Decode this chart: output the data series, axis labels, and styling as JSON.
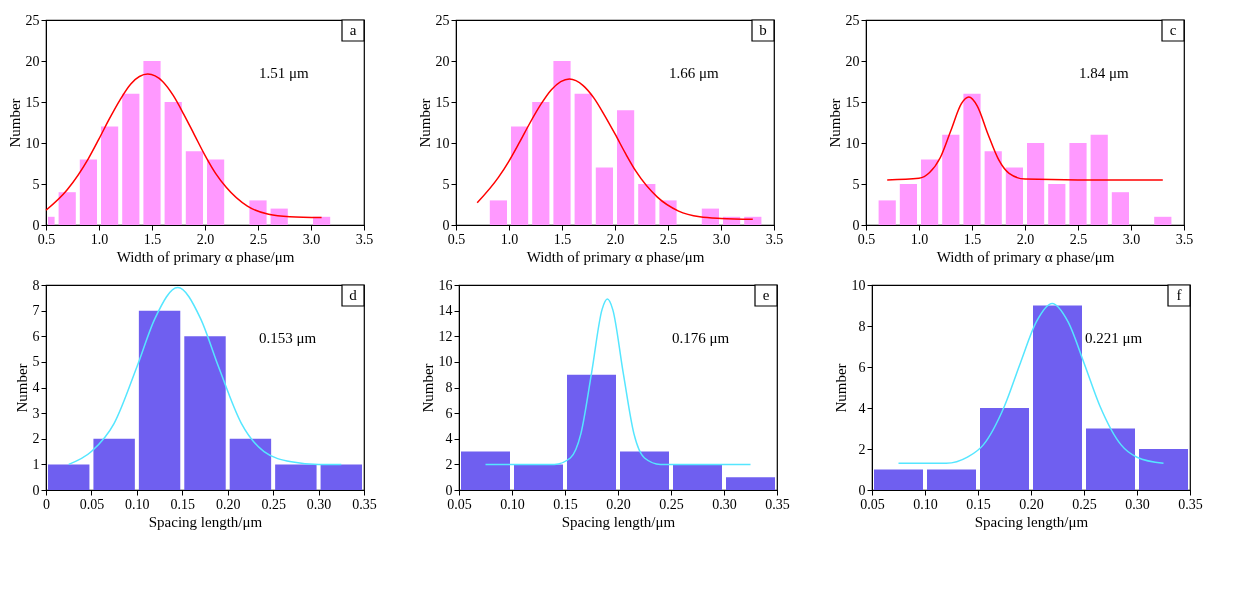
{
  "chart_data": [
    {
      "type": "histogram",
      "xlabel": "Width of primary α phase/μm",
      "ylabel": "Number",
      "color": "#ff99ff",
      "bins": [
        0.5,
        0.6,
        0.8,
        1.0,
        1.2,
        1.4,
        1.6,
        1.8,
        2.0,
        2.2,
        2.4,
        2.6,
        2.8,
        3.0,
        3.2
      ],
      "values": [
        1,
        4,
        8,
        12,
        16,
        20,
        15,
        9,
        8,
        0,
        3,
        2,
        0,
        1
      ],
      "series": [
        {
          "type": "line",
          "color": "#ff0000",
          "x": [
            0.5,
            0.7,
            0.9,
            1.0,
            1.1,
            1.2,
            1.3,
            1.46,
            1.6,
            1.7,
            1.8,
            1.9,
            2.0,
            2.1,
            2.2,
            2.4,
            2.6,
            2.8,
            3.1
          ],
          "values": [
            1.8,
            4.3,
            8.1,
            10.5,
            13.0,
            15.3,
            17.2,
            18.4,
            17.5,
            15.8,
            13.5,
            11.0,
            8.5,
            6.3,
            4.6,
            2.3,
            1.3,
            1.0,
            0.9
          ]
        }
      ],
      "xlim": [
        0.5,
        3.5
      ],
      "xticks": [
        0.5,
        {
          "value": 1,
          "label": "1.0"
        },
        1.5,
        {
          "value": 2,
          "label": "2.0"
        },
        2.5,
        {
          "value": 3,
          "label": "3.0"
        },
        3.5
      ],
      "ylim": [
        0,
        25
      ],
      "yticks": [
        0,
        5,
        10,
        15,
        20,
        25
      ],
      "annotations": [
        "a",
        "1.51 μm"
      ]
    },
    {
      "type": "histogram",
      "xlabel": "Width of primary α phase/μm",
      "ylabel": "Number",
      "color": "#ff99ff",
      "bins": [
        0.8,
        1.0,
        1.2,
        1.4,
        1.6,
        1.8,
        2.0,
        2.2,
        2.4,
        2.6,
        2.8,
        3.0,
        3.2,
        3.4
      ],
      "values": [
        3,
        12,
        15,
        20,
        16,
        7,
        14,
        5,
        3,
        0,
        2,
        1,
        1
      ],
      "series": [
        {
          "type": "line",
          "color": "#ff0000",
          "x": [
            0.7,
            0.9,
            1.0,
            1.1,
            1.2,
            1.3,
            1.4,
            1.57,
            1.7,
            1.8,
            1.9,
            2.0,
            2.1,
            2.2,
            2.4,
            2.6,
            2.8,
            3.0,
            3.3
          ],
          "values": [
            2.7,
            5.8,
            7.8,
            10.1,
            12.5,
            14.7,
            16.5,
            17.8,
            17.0,
            15.5,
            13.4,
            11.1,
            8.7,
            6.5,
            3.4,
            1.7,
            1.0,
            0.8,
            0.7
          ]
        }
      ],
      "xlim": [
        0.5,
        3.5
      ],
      "xticks": [
        0.5,
        {
          "value": 1,
          "label": "1.0"
        },
        1.5,
        {
          "value": 2,
          "label": "2.0"
        },
        2.5,
        {
          "value": 3,
          "label": "3.0"
        },
        3.5
      ],
      "ylim": [
        0,
        25
      ],
      "yticks": [
        0,
        5,
        10,
        15,
        20,
        25
      ],
      "annotations": [
        "b",
        "1.66 μm"
      ]
    },
    {
      "type": "histogram",
      "xlabel": "Width of primary α phase/μm",
      "ylabel": "Number",
      "color": "#ff99ff",
      "bins": [
        0.6,
        0.8,
        1.0,
        1.2,
        1.4,
        1.6,
        1.8,
        2.0,
        2.2,
        2.4,
        2.6,
        2.8,
        3.0,
        3.2,
        3.4
      ],
      "values": [
        3,
        5,
        8,
        11,
        16,
        9,
        7,
        10,
        5,
        10,
        11,
        4,
        0,
        1
      ],
      "series": [
        {
          "type": "line",
          "color": "#ff0000",
          "x": [
            0.7,
            1.0,
            1.1,
            1.2,
            1.3,
            1.4,
            1.47,
            1.55,
            1.65,
            1.75,
            1.85,
            2.0,
            2.5,
            3.3
          ],
          "values": [
            5.5,
            5.7,
            6.4,
            8.2,
            11.5,
            14.8,
            15.6,
            14.5,
            11.1,
            8.0,
            6.3,
            5.6,
            5.5,
            5.5
          ]
        }
      ],
      "xlim": [
        0.5,
        3.5
      ],
      "xticks": [
        0.5,
        {
          "value": 1,
          "label": "1.0"
        },
        1.5,
        {
          "value": 2,
          "label": "2.0"
        },
        2.5,
        {
          "value": 3,
          "label": "3.0"
        },
        3.5
      ],
      "ylim": [
        0,
        25
      ],
      "yticks": [
        0,
        5,
        10,
        15,
        20,
        25
      ],
      "annotations": [
        "c",
        "1.84 μm"
      ]
    },
    {
      "type": "histogram",
      "xlabel": "Spacing length/μm",
      "ylabel": "Number",
      "color": "#6f5ff0",
      "bins": [
        0,
        0.05,
        0.1,
        0.15,
        0.2,
        0.25,
        0.3,
        0.35
      ],
      "values": [
        1,
        2,
        7,
        6,
        2,
        1,
        1
      ],
      "series": [
        {
          "type": "line",
          "color": "#55e6ff",
          "x": [
            0.025,
            0.05,
            0.075,
            0.1,
            0.12,
            0.145,
            0.17,
            0.19,
            0.215,
            0.24,
            0.27,
            0.3,
            0.325
          ],
          "values": [
            1.0,
            1.5,
            2.6,
            4.8,
            6.7,
            7.9,
            6.7,
            4.8,
            2.6,
            1.5,
            1.1,
            1.0,
            1.0
          ]
        }
      ],
      "xlim": [
        0,
        0.35
      ],
      "xticks": [
        0,
        0.05,
        {
          "value": 0.1,
          "label": "0.10"
        },
        0.15,
        {
          "value": 0.2,
          "label": "0.20"
        },
        0.25,
        {
          "value": 0.3,
          "label": "0.30"
        },
        0.35
      ],
      "ylim": [
        0,
        8
      ],
      "yticks": [
        0,
        1,
        2,
        3,
        4,
        5,
        6,
        7,
        8
      ],
      "annotations": [
        "d",
        "0.153 μm"
      ]
    },
    {
      "type": "histogram",
      "xlabel": "Spacing length/μm",
      "ylabel": "Number",
      "color": "#6f5ff0",
      "bins": [
        0.05,
        0.1,
        0.15,
        0.2,
        0.25,
        0.3,
        0.35
      ],
      "values": [
        3,
        2,
        9,
        3,
        2,
        1
      ],
      "series": [
        {
          "type": "line",
          "color": "#55e6ff",
          "x": [
            0.075,
            0.14,
            0.155,
            0.165,
            0.175,
            0.185,
            0.19,
            0.195,
            0.205,
            0.215,
            0.225,
            0.24,
            0.325
          ],
          "values": [
            2.0,
            2.0,
            2.5,
            4.4,
            9.1,
            14.1,
            14.9,
            14.1,
            9.1,
            4.4,
            2.5,
            2.0,
            2.0
          ]
        }
      ],
      "xlim": [
        0.05,
        0.35
      ],
      "xticks": [
        0.05,
        {
          "value": 0.1,
          "label": "0.10"
        },
        0.15,
        {
          "value": 0.2,
          "label": "0.20"
        },
        0.25,
        {
          "value": 0.3,
          "label": "0.30"
        },
        0.35
      ],
      "ylim": [
        0,
        16
      ],
      "yticks": [
        0,
        2,
        4,
        6,
        8,
        10,
        12,
        14,
        16
      ],
      "annotations": [
        "e",
        "0.176 μm"
      ]
    },
    {
      "type": "histogram",
      "xlabel": "Spacing length/μm",
      "ylabel": "Number",
      "color": "#6f5ff0",
      "bins": [
        0.05,
        0.1,
        0.15,
        0.2,
        0.25,
        0.3,
        0.35
      ],
      "values": [
        1,
        1,
        4,
        9,
        3,
        2
      ],
      "series": [
        {
          "type": "line",
          "color": "#55e6ff",
          "x": [
            0.075,
            0.12,
            0.14,
            0.155,
            0.175,
            0.19,
            0.205,
            0.22,
            0.235,
            0.25,
            0.265,
            0.285,
            0.3,
            0.325
          ],
          "values": [
            1.3,
            1.3,
            1.6,
            2.2,
            4.1,
            6.2,
            8.2,
            9.1,
            8.2,
            6.2,
            4.1,
            2.2,
            1.6,
            1.3
          ]
        }
      ],
      "xlim": [
        0.05,
        0.35
      ],
      "xticks": [
        0.05,
        {
          "value": 0.1,
          "label": "0.10"
        },
        0.15,
        {
          "value": 0.2,
          "label": "0.20"
        },
        0.25,
        {
          "value": 0.3,
          "label": "0.30"
        },
        0.35
      ],
      "ylim": [
        0,
        10
      ],
      "yticks": [
        0,
        2,
        4,
        6,
        8,
        10
      ],
      "annotations": [
        "f",
        "0.221 μm"
      ]
    }
  ]
}
